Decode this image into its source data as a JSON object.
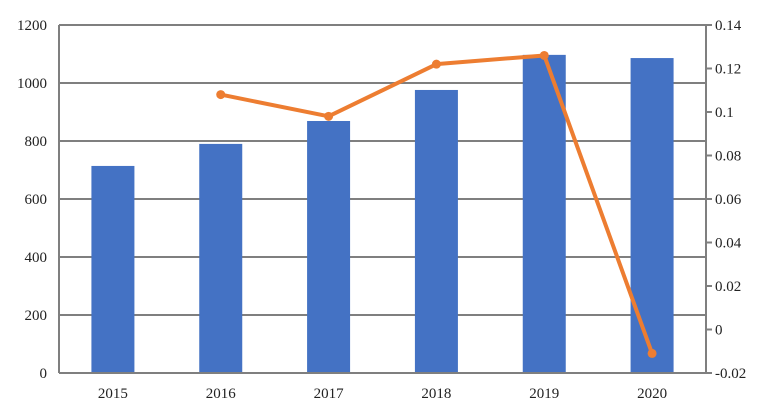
{
  "chart_data": {
    "type": "bar",
    "categories": [
      "2015",
      "2016",
      "2017",
      "2018",
      "2019",
      "2020"
    ],
    "series": [
      {
        "type": "bar",
        "axis": "left",
        "color": "#4472C4",
        "values": [
          714,
          790,
          869,
          976,
          1097,
          1086
        ]
      },
      {
        "type": "line",
        "axis": "right",
        "color": "#ED7D31",
        "values": [
          null,
          0.108,
          0.098,
          0.122,
          0.126,
          -0.011
        ]
      }
    ],
    "y_left": {
      "min": 0,
      "max": 1200,
      "ticks": [
        "0",
        "200",
        "400",
        "600",
        "800",
        "1000",
        "1200"
      ]
    },
    "y_right": {
      "min": -0.02,
      "max": 0.14,
      "ticks": [
        "-0.02",
        "0",
        "0.02",
        "0.04",
        "0.06",
        "0.08",
        "0.1",
        "0.12",
        "0.14"
      ]
    },
    "grid": true,
    "legend": "none",
    "title": "",
    "xlabel": "",
    "ylabel": ""
  }
}
